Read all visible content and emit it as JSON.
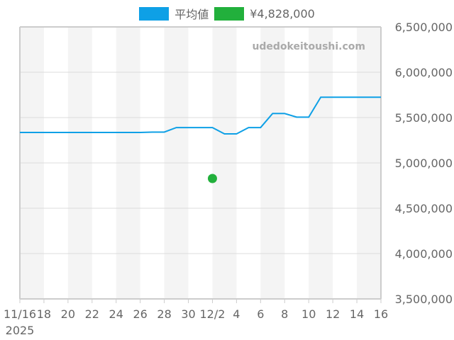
{
  "legend": {
    "series_average_label": "平均値",
    "series_average_color": "#0ea0e6",
    "series_point_label": "¥4,828,000",
    "series_point_color": "#22b03c"
  },
  "watermark": "udedokeitoushi.com",
  "chart_data": {
    "type": "line",
    "title": "",
    "xlabel": "",
    "ylabel": "",
    "ylim": [
      3500000,
      6500000
    ],
    "grid": true,
    "legend_position": "top",
    "y_ticks": [
      "3,500,000",
      "4,000,000",
      "4,500,000",
      "5,000,000",
      "5,500,000",
      "6,000,000",
      "6,500,000"
    ],
    "x_ticks": [
      "11/16",
      "18",
      "20",
      "22",
      "24",
      "26",
      "28",
      "30",
      "12/2",
      "4",
      "6",
      "8",
      "10",
      "12",
      "14",
      "16"
    ],
    "x_year_label": "2025",
    "x": [
      "11/16",
      "11/17",
      "11/18",
      "11/19",
      "11/20",
      "11/21",
      "11/22",
      "11/23",
      "11/24",
      "11/25",
      "11/26",
      "11/27",
      "11/28",
      "11/29",
      "11/30",
      "12/1",
      "12/2",
      "12/3",
      "12/4",
      "12/5",
      "12/6",
      "12/7",
      "12/8",
      "12/9",
      "12/10",
      "12/11",
      "12/12",
      "12/13",
      "12/14",
      "12/15",
      "12/16"
    ],
    "series": [
      {
        "name": "平均値",
        "type": "line",
        "color": "#0ea0e6",
        "values": [
          5336000,
          5336000,
          5336000,
          5336000,
          5336000,
          5336000,
          5336000,
          5336000,
          5336000,
          5336000,
          5336000,
          5340000,
          5340000,
          5390000,
          5390000,
          5390000,
          5390000,
          5320000,
          5320000,
          5390000,
          5390000,
          5545000,
          5545000,
          5505000,
          5505000,
          5725000,
          5725000,
          5725000,
          5725000,
          5725000,
          5725000
        ]
      },
      {
        "name": "¥4,828,000",
        "type": "scatter",
        "color": "#22b03c",
        "points": [
          {
            "x": "12/2",
            "y": 4828000
          }
        ]
      }
    ]
  }
}
